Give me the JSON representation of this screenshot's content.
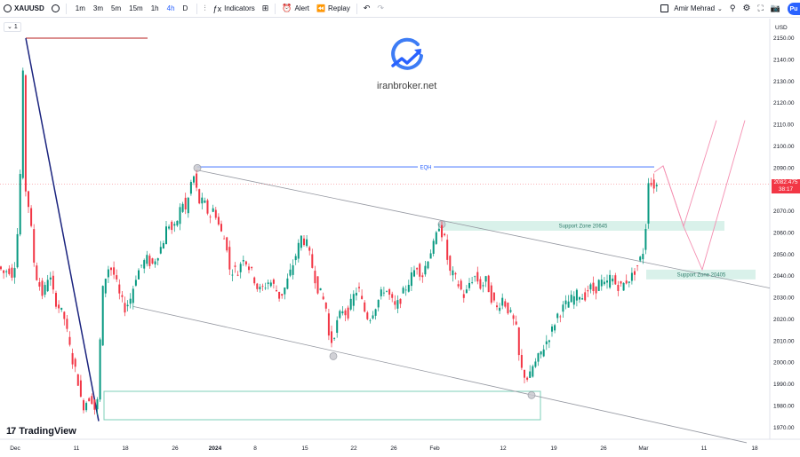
{
  "toolbar": {
    "symbol": "XAUUSD",
    "add_icon": "plus-circle-icon",
    "timeframes": [
      {
        "label": "1m",
        "active": false
      },
      {
        "label": "3m",
        "active": false
      },
      {
        "label": "5m",
        "active": false
      },
      {
        "label": "15m",
        "active": false
      },
      {
        "label": "1h",
        "active": false
      },
      {
        "label": "4h",
        "active": true
      },
      {
        "label": "D",
        "active": false
      }
    ],
    "indicators_label": "Indicators",
    "alert_label": "Alert",
    "replay_label": "Replay",
    "user_name": "Amir Mehrad",
    "publish_label": "Pu"
  },
  "legend_chip": "1",
  "watermark": {
    "site": "iranbroker.net"
  },
  "logo_text": "TradingView",
  "price_label": {
    "price": "2082.475",
    "countdown": "38:17"
  },
  "colors": {
    "up": "#26a69a",
    "down": "#ef5350",
    "upBody": "#089981",
    "downBody": "#f23645",
    "trendline": "#1a237e",
    "eqh": "#2962ff",
    "zone": "#d5f0e8",
    "box": "#7ccfb8",
    "channel": "#9598a1",
    "projection": "#f48fb1",
    "resistance": "#b71c1c"
  },
  "chart_data": {
    "type": "candlestick",
    "currency": "USD",
    "x_tick_labels": [
      "Dec",
      "11",
      "18",
      "26",
      "2024",
      "8",
      "15",
      "22",
      "26",
      "Feb",
      "12",
      "19",
      "26",
      "Mar",
      "11",
      "18"
    ],
    "y_ticks": [
      1970,
      1980,
      1990,
      2000,
      2010,
      2020,
      2030,
      2040,
      2050,
      2060,
      2070,
      2080,
      2090,
      2100,
      2110,
      2120,
      2130,
      2140,
      2150
    ],
    "ylim": [
      1966,
      2156
    ],
    "last_price": 2082.475,
    "annotations": [
      {
        "type": "label",
        "text": "EQH",
        "price": 2090.5
      },
      {
        "type": "zone",
        "text": "Support Zone 20645",
        "low": 2061,
        "high": 2065.5
      },
      {
        "type": "zone",
        "text": "Support Zone 20405",
        "low": 2038.5,
        "high": 2043
      }
    ],
    "path": [
      [
        0,
        2045
      ],
      [
        4,
        2043
      ],
      [
        8,
        2041
      ],
      [
        12,
        2044
      ],
      [
        18,
        2040
      ],
      [
        22,
        2055
      ],
      [
        25,
        2075
      ],
      [
        28,
        2120
      ],
      [
        30,
        2148
      ],
      [
        32,
        2080
      ],
      [
        34,
        2070
      ],
      [
        36,
        2075
      ],
      [
        40,
        2050
      ],
      [
        44,
        2040
      ],
      [
        48,
        2035
      ],
      [
        52,
        2030
      ],
      [
        56,
        2040
      ],
      [
        60,
        2038
      ],
      [
        64,
        2030
      ],
      [
        70,
        2025
      ],
      [
        76,
        2020
      ],
      [
        80,
        2010
      ],
      [
        84,
        2002
      ],
      [
        88,
        1996
      ],
      [
        92,
        1990
      ],
      [
        95,
        1979
      ],
      [
        100,
        1982
      ],
      [
        105,
        1985
      ],
      [
        110,
        1978
      ],
      [
        114,
        1984
      ],
      [
        117,
        2030
      ],
      [
        122,
        2040
      ],
      [
        126,
        2045
      ],
      [
        132,
        2040
      ],
      [
        138,
        2030
      ],
      [
        144,
        2025
      ],
      [
        150,
        2030
      ],
      [
        156,
        2040
      ],
      [
        162,
        2045
      ],
      [
        168,
        2048
      ],
      [
        174,
        2045
      ],
      [
        180,
        2050
      ],
      [
        186,
        2055
      ],
      [
        192,
        2065
      ],
      [
        198,
        2060
      ],
      [
        204,
        2068
      ],
      [
        208,
        2075
      ],
      [
        212,
        2070
      ],
      [
        216,
        2078
      ],
      [
        220,
        2088
      ],
      [
        224,
        2080
      ],
      [
        228,
        2073
      ],
      [
        232,
        2075
      ],
      [
        236,
        2070
      ],
      [
        240,
        2068
      ],
      [
        244,
        2072
      ],
      [
        248,
        2065
      ],
      [
        252,
        2060
      ],
      [
        258,
        2055
      ],
      [
        262,
        2040
      ],
      [
        266,
        2045
      ],
      [
        270,
        2040
      ],
      [
        276,
        2050
      ],
      [
        282,
        2045
      ],
      [
        288,
        2040
      ],
      [
        294,
        2033
      ],
      [
        300,
        2035
      ],
      [
        306,
        2038
      ],
      [
        312,
        2035
      ],
      [
        318,
        2030
      ],
      [
        324,
        2035
      ],
      [
        330,
        2042
      ],
      [
        336,
        2050
      ],
      [
        342,
        2058
      ],
      [
        348,
        2055
      ],
      [
        354,
        2045
      ],
      [
        360,
        2035
      ],
      [
        366,
        2030
      ],
      [
        370,
        2025
      ],
      [
        374,
        2008
      ],
      [
        378,
        2012
      ],
      [
        382,
        2018
      ],
      [
        388,
        2025
      ],
      [
        394,
        2022
      ],
      [
        400,
        2030
      ],
      [
        406,
        2035
      ],
      [
        412,
        2025
      ],
      [
        418,
        2020
      ],
      [
        424,
        2025
      ],
      [
        430,
        2030
      ],
      [
        436,
        2035
      ],
      [
        442,
        2030
      ],
      [
        448,
        2025
      ],
      [
        454,
        2030
      ],
      [
        460,
        2035
      ],
      [
        466,
        2040
      ],
      [
        472,
        2045
      ],
      [
        478,
        2040
      ],
      [
        484,
        2048
      ],
      [
        488,
        2052
      ],
      [
        492,
        2055
      ],
      [
        497,
        2064
      ],
      [
        500,
        2060
      ],
      [
        504,
        2056
      ],
      [
        508,
        2042
      ],
      [
        514,
        2040
      ],
      [
        520,
        2035
      ],
      [
        526,
        2030
      ],
      [
        532,
        2038
      ],
      [
        538,
        2040
      ],
      [
        544,
        2035
      ],
      [
        550,
        2038
      ],
      [
        556,
        2030
      ],
      [
        562,
        2025
      ],
      [
        568,
        2030
      ],
      [
        574,
        2025
      ],
      [
        580,
        2020
      ],
      [
        584,
        2015
      ],
      [
        588,
        1998
      ],
      [
        592,
        1995
      ],
      [
        598,
        1992
      ],
      [
        602,
        1998
      ],
      [
        606,
        2000
      ],
      [
        612,
        2005
      ],
      [
        618,
        2010
      ],
      [
        624,
        2015
      ],
      [
        630,
        2022
      ],
      [
        636,
        2025
      ],
      [
        642,
        2028
      ],
      [
        648,
        2030
      ],
      [
        654,
        2032
      ],
      [
        660,
        2030
      ],
      [
        666,
        2035
      ],
      [
        672,
        2033
      ],
      [
        678,
        2038
      ],
      [
        684,
        2035
      ],
      [
        690,
        2040
      ],
      [
        696,
        2036
      ],
      [
        702,
        2035
      ],
      [
        708,
        2038
      ],
      [
        714,
        2040
      ],
      [
        720,
        2045
      ],
      [
        726,
        2050
      ],
      [
        730,
        2065
      ],
      [
        733,
        2088
      ],
      [
        736,
        2082
      ],
      [
        741,
        2082
      ]
    ]
  }
}
